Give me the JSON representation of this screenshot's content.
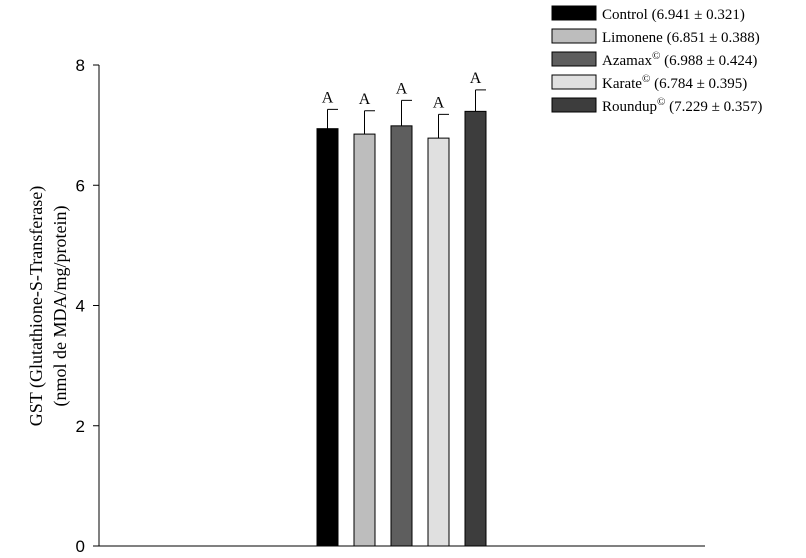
{
  "chart_data": {
    "type": "bar",
    "title": "",
    "ylabel_line1": "GST (Glutathione-S-Transferase)",
    "ylabel_line2": "(nmol de MDA/mg/protein)",
    "xlabel": "",
    "ylim": [
      0,
      8
    ],
    "yticks": [
      0,
      2,
      4,
      6,
      8
    ],
    "legend_position": "top-right",
    "series": [
      {
        "name": "Control",
        "sup": "",
        "stats": " (6.941 ± 0.321)",
        "value": 6.941,
        "error": 0.321,
        "color": "#000000",
        "letter": "A"
      },
      {
        "name": "Limonene",
        "sup": "",
        "stats": " (6.851 ± 0.388)",
        "value": 6.851,
        "error": 0.388,
        "color": "#bdbdbd",
        "letter": "A"
      },
      {
        "name": "Azamax",
        "sup": "©",
        "stats": " (6.988 ± 0.424)",
        "value": 6.988,
        "error": 0.424,
        "color": "#5e5e5e",
        "letter": "A"
      },
      {
        "name": "Karate",
        "sup": "©",
        "stats": " (6.784 ± 0.395)",
        "value": 6.784,
        "error": 0.395,
        "color": "#e0e0e0",
        "letter": "A"
      },
      {
        "name": "Roundup",
        "sup": "©",
        "stats": " (7.229 ± 0.357)",
        "value": 7.229,
        "error": 0.357,
        "color": "#3d3d3d",
        "letter": "A"
      }
    ]
  }
}
